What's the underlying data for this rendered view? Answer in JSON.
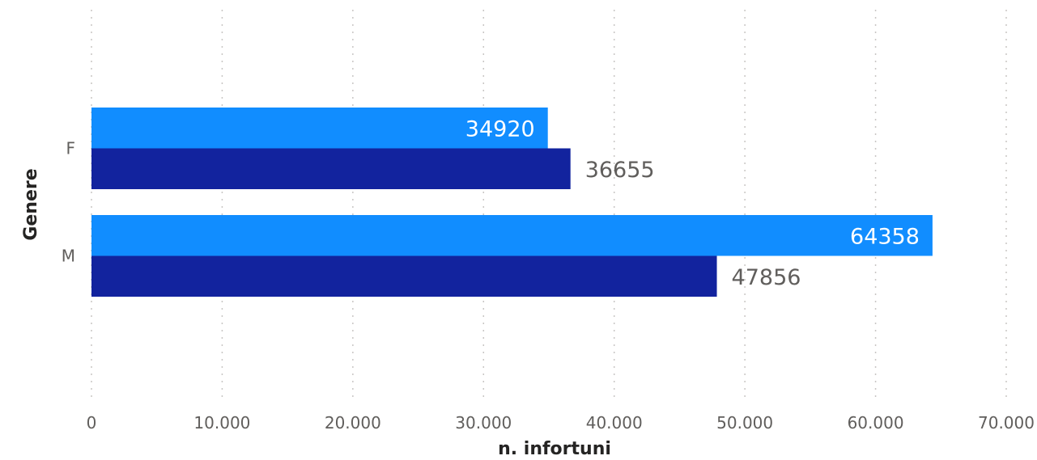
{
  "chart_data": {
    "type": "bar",
    "orientation": "horizontal",
    "categories": [
      "F",
      "M"
    ],
    "series": [
      {
        "color": "#118dff",
        "values": [
          34920,
          64358
        ],
        "label_position": "inside-end",
        "label_color": "#ffffff"
      },
      {
        "color": "#12239e",
        "values": [
          36655,
          47856
        ],
        "label_position": "outside-end",
        "label_color": "#605e5c"
      }
    ],
    "data_labels": {
      "F": [
        "34920",
        "36655"
      ],
      "M": [
        "64358",
        "47856"
      ]
    },
    "xlabel": "n. infortuni",
    "ylabel": "Genere",
    "xlim": [
      0,
      70000
    ],
    "x_ticks": [
      0,
      10000,
      20000,
      30000,
      40000,
      50000,
      60000,
      70000
    ],
    "x_tick_labels": [
      "0",
      "10.000",
      "20.000",
      "30.000",
      "40.000",
      "50.000",
      "60.000",
      "70.000"
    ],
    "grid": "vertical-dotted",
    "legend": "none"
  }
}
